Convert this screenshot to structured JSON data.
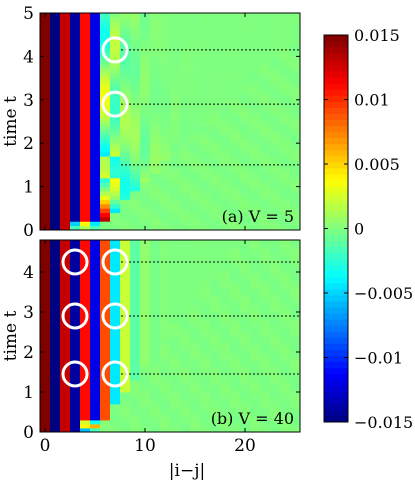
{
  "chart_data": {
    "type": "heatmap",
    "xlabel": "|i−j|",
    "x_ticks": [
      0,
      10,
      20
    ],
    "xlim": [
      -0.5,
      25.5
    ],
    "panels": [
      {
        "label": "(a) V = 5",
        "V": 5,
        "ylabel": "time t",
        "ylim": [
          0,
          5
        ],
        "y_ticks": [
          0,
          1,
          2,
          3,
          4,
          5
        ],
        "dotted_lines_t": [
          1.5,
          2.9,
          4.15
        ],
        "circles": [
          {
            "x": 7,
            "t": 4.15
          },
          {
            "x": 7,
            "t": 2.9
          }
        ]
      },
      {
        "label": "(b) V = 40",
        "V": 40,
        "ylabel": "time t",
        "ylim": [
          0,
          4.8
        ],
        "y_ticks": [
          0,
          1,
          2,
          3,
          4
        ],
        "dotted_lines_t": [
          1.45,
          2.9,
          4.25
        ],
        "circles": [
          {
            "x": 3,
            "t": 4.25
          },
          {
            "x": 7,
            "t": 4.25
          },
          {
            "x": 3,
            "t": 2.9
          },
          {
            "x": 7,
            "t": 2.9
          },
          {
            "x": 3,
            "t": 1.45
          },
          {
            "x": 7,
            "t": 1.45
          }
        ]
      }
    ],
    "colorbar": {
      "min": -0.015,
      "max": 0.015,
      "ticks": [
        0.015,
        0.01,
        0.005,
        0,
        -0.005,
        -0.01,
        -0.015
      ],
      "tick_labels": [
        "0.015",
        "0.01",
        "0.005",
        "0",
        "−0.005",
        "−0.01",
        "−0.015"
      ]
    }
  }
}
